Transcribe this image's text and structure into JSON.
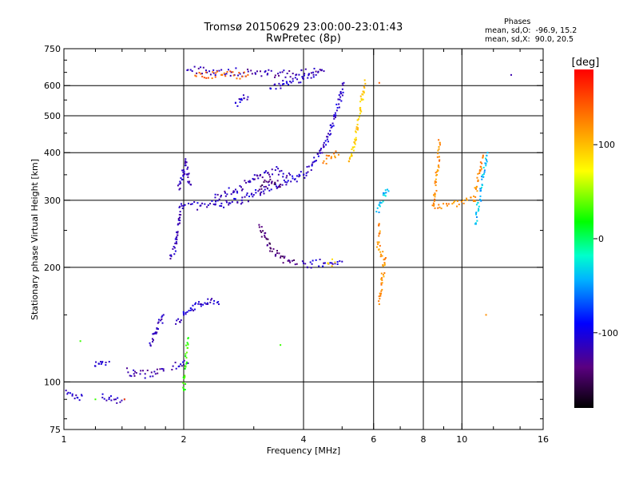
{
  "header": {
    "title_line1": "Tromsø 20150629 23:00:00-23:01:43",
    "title_line2": "RwPretec (8p)"
  },
  "stats": {
    "heading": "Phases",
    "line_o": "mean, sd,O:  -96.9, 15.2",
    "line_x": "mean, sd,X:  90.0, 20.5"
  },
  "colorbar": {
    "unit_label": "[deg]",
    "tick_labels": [
      "100",
      "0",
      "-100"
    ],
    "tick_values": [
      100,
      0,
      -100
    ],
    "range": [
      -180,
      180
    ],
    "colormap": "rainbow (black-purple-blue-cyan-green-yellow-orange-red)"
  },
  "chart_data": {
    "type": "scatter",
    "title": "Tromsø 20150629 23:00:00-23:01:43",
    "subtitle": "RwPretec (8p)",
    "xlabel": "Frequency [MHz]",
    "ylabel": "Stationary phase Virtual Height [km]",
    "x_scale": "log",
    "y_scale": "log",
    "xlim": [
      1,
      16
    ],
    "ylim": [
      75,
      750
    ],
    "x_ticks": [
      1,
      2,
      4,
      6,
      8,
      10,
      16
    ],
    "x_tick_labels": [
      "1",
      "2",
      "4",
      "6",
      "8",
      "10",
      "16"
    ],
    "x_minor_ticks": [
      1.2,
      1.4,
      1.6,
      1.8,
      3,
      5,
      7,
      9,
      12,
      14
    ],
    "y_ticks": [
      75,
      100,
      200,
      300,
      400,
      500,
      600,
      750
    ],
    "y_tick_labels": [
      "75",
      "100",
      "200",
      "300",
      "400",
      "500",
      "600",
      "750"
    ],
    "grid": true,
    "grid_x": [
      2,
      4,
      6,
      8,
      10
    ],
    "grid_y": [
      100,
      200,
      300,
      400,
      500,
      600
    ],
    "color_encoding": "phase [deg]",
    "traces": [
      {
        "points": [
          [
            1.02,
            93
          ],
          [
            1.05,
            92
          ],
          [
            1.08,
            91
          ],
          [
            1.11,
            92
          ]
        ],
        "phase": -110
      },
      {
        "points": [
          [
            1.25,
            91
          ],
          [
            1.3,
            91
          ],
          [
            1.35,
            90
          ],
          [
            1.42,
            90
          ]
        ],
        "phase": -115
      },
      {
        "points": [
          [
            1.42,
            90
          ]
        ],
        "phase": 150
      },
      {
        "points": [
          [
            1.2,
            110
          ],
          [
            1.25,
            113
          ],
          [
            1.3,
            113
          ]
        ],
        "phase": -110
      },
      {
        "points": [
          [
            1.45,
            106
          ],
          [
            1.5,
            105
          ],
          [
            1.6,
            105
          ],
          [
            1.7,
            105
          ],
          [
            1.78,
            107
          ]
        ],
        "phase": -120
      },
      {
        "points": [
          [
            1.65,
            125
          ],
          [
            1.7,
            135
          ],
          [
            1.75,
            145
          ],
          [
            1.78,
            150
          ]
        ],
        "phase": -115
      },
      {
        "points": [
          [
            1.88,
            110
          ],
          [
            1.95,
            110
          ],
          [
            2.0,
            111
          ],
          [
            2.05,
            112
          ]
        ],
        "phase": -115
      },
      {
        "points": [
          [
            1.92,
            145
          ],
          [
            2.0,
            150
          ],
          [
            2.1,
            155
          ],
          [
            2.2,
            160
          ],
          [
            2.3,
            165
          ],
          [
            2.45,
            160
          ]
        ],
        "phase": -110
      },
      {
        "points": [
          [
            1.85,
            215
          ],
          [
            1.9,
            225
          ],
          [
            1.92,
            240
          ],
          [
            1.94,
            260
          ],
          [
            1.96,
            280
          ],
          [
            1.98,
            290
          ]
        ],
        "phase": -115
      },
      {
        "points": [
          [
            1.95,
            320
          ],
          [
            1.98,
            340
          ],
          [
            2.0,
            360
          ],
          [
            2.02,
            380
          ],
          [
            2.05,
            350
          ],
          [
            2.08,
            330
          ]
        ],
        "phase": -115
      },
      {
        "points": [
          [
            2.0,
            290
          ],
          [
            2.2,
            290
          ],
          [
            2.4,
            292
          ],
          [
            2.6,
            295
          ],
          [
            2.8,
            300
          ],
          [
            3.0,
            310
          ],
          [
            3.2,
            320
          ],
          [
            3.4,
            330
          ],
          [
            3.6,
            335
          ],
          [
            3.8,
            340
          ],
          [
            4.0,
            350
          ]
        ],
        "phase": -110
      },
      {
        "points": [
          [
            2.4,
            305
          ],
          [
            2.7,
            320
          ],
          [
            3.0,
            340
          ],
          [
            3.2,
            355
          ],
          [
            3.4,
            360
          ],
          [
            3.7,
            350
          ]
        ],
        "phase": -115
      },
      {
        "points": [
          [
            3.1,
            320
          ],
          [
            3.3,
            340
          ],
          [
            3.5,
            330
          ]
        ],
        "phase": -140
      },
      {
        "points": [
          [
            3.1,
            255
          ],
          [
            3.2,
            240
          ],
          [
            3.3,
            225
          ],
          [
            3.5,
            212
          ],
          [
            3.7,
            206
          ],
          [
            3.85,
            204
          ]
        ],
        "phase": -140
      },
      {
        "points": [
          [
            4.0,
            205
          ],
          [
            4.2,
            204
          ],
          [
            4.5,
            205
          ],
          [
            4.8,
            206
          ],
          [
            5.0,
            207
          ]
        ],
        "phase": -110
      },
      {
        "points": [
          [
            4.6,
            205
          ],
          [
            4.8,
            206
          ]
        ],
        "phase": 90
      },
      {
        "points": [
          [
            4.0,
            350
          ],
          [
            4.2,
            370
          ],
          [
            4.4,
            400
          ],
          [
            4.6,
            440
          ],
          [
            4.8,
            500
          ],
          [
            4.95,
            560
          ],
          [
            5.05,
            610
          ]
        ],
        "phase": -110
      },
      {
        "points": [
          [
            4.5,
            380
          ],
          [
            4.7,
            390
          ],
          [
            4.9,
            395
          ]
        ],
        "phase": 120
      },
      {
        "points": [
          [
            5.2,
            380
          ],
          [
            5.4,
            430
          ],
          [
            5.5,
            490
          ],
          [
            5.6,
            550
          ],
          [
            5.7,
            620
          ]
        ],
        "phase": 95
      },
      {
        "points": [
          [
            2.7,
            540
          ],
          [
            2.8,
            550
          ],
          [
            2.9,
            560
          ]
        ],
        "phase": -110
      },
      {
        "points": [
          [
            3.3,
            590
          ],
          [
            3.5,
            600
          ],
          [
            3.7,
            615
          ],
          [
            4.0,
            625
          ],
          [
            4.3,
            640
          ]
        ],
        "phase": -110
      },
      {
        "points": [
          [
            2.05,
            660
          ],
          [
            3.25,
            645
          ],
          [
            3.45,
            645
          ],
          [
            4.35,
            650
          ],
          [
            4.5,
            655
          ],
          [
            13.3,
            640
          ]
        ],
        "phase": -120
      },
      {
        "points": [
          [
            2.15,
            635
          ],
          [
            2.5,
            640
          ],
          [
            2.9,
            640
          ],
          [
            6.2,
            610
          ]
        ],
        "phase": 140
      },
      {
        "points": [
          [
            6.2,
            260
          ],
          [
            6.15,
            230
          ],
          [
            6.4,
            210
          ],
          [
            6.3,
            185
          ],
          [
            6.2,
            160
          ],
          [
            8.8,
            425
          ],
          [
            8.5,
            290
          ],
          [
            10.7,
            300
          ],
          [
            11.3,
            390
          ],
          [
            11.5,
            150
          ]
        ],
        "phase": 120
      },
      {
        "points": [
          [
            6.5,
            320
          ],
          [
            6.1,
            280
          ],
          [
            10.8,
            260
          ],
          [
            11.6,
            400
          ]
        ],
        "phase": -40
      },
      {
        "points": [
          [
            1.2,
            90
          ],
          [
            2.0,
            95
          ],
          [
            2.05,
            130
          ],
          [
            3.5,
            125
          ],
          [
            1.1,
            128
          ]
        ],
        "phase": 30
      }
    ]
  }
}
